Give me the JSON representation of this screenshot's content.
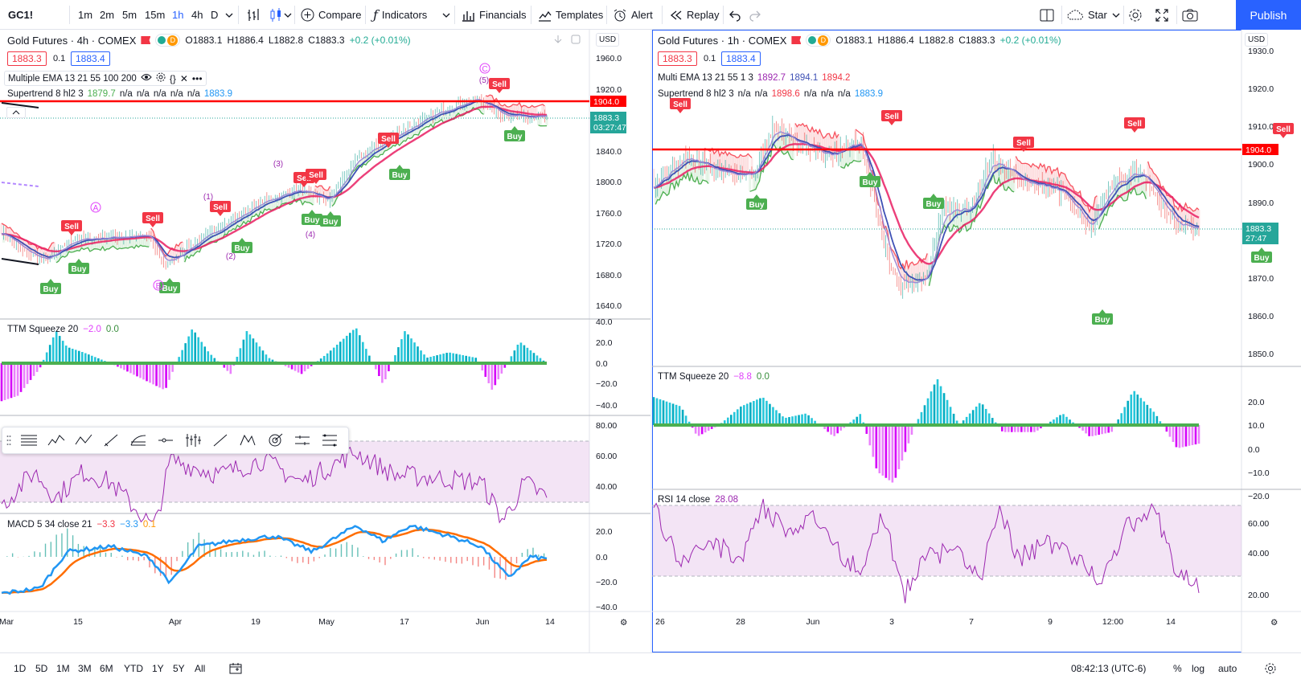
{
  "toolbar": {
    "symbol": "GC1!",
    "intervals": [
      "1m",
      "2m",
      "5m",
      "15m",
      "1h",
      "4h",
      "D"
    ],
    "active_interval": "1h",
    "compare": "Compare",
    "indicators": "Indicators",
    "financials": "Financials",
    "templates": "Templates",
    "alert": "Alert",
    "replay": "Replay",
    "layout_name": "Star",
    "publish": "Publish"
  },
  "left_chart": {
    "title": "Gold Futures · 4h · COMEX",
    "d_badge": "D",
    "ohlc": {
      "o": "O1883.1",
      "h": "H1886.4",
      "l": "L1882.8",
      "c": "C1883.3",
      "chg": "+0.2 (+0.01%)"
    },
    "bid": "1883.3",
    "spread": "0.1",
    "ask": "1883.4",
    "ema_label": "Multiple EMA 13 21 55 100 200",
    "supertrend_label": "Supertrend 8 hl2 3",
    "supertrend_values": [
      "1879.7",
      "n/a",
      "n/a",
      "n/a",
      "n/a",
      "n/a",
      "1883.9"
    ],
    "currency": "USD",
    "price_ticks": [
      "1960.0",
      "1920.0",
      "1880.0",
      "1840.0",
      "1800.0",
      "1760.0",
      "1720.0",
      "1680.0",
      "1640.0"
    ],
    "hline_label": "1904.0",
    "last_price": "1883.3",
    "countdown": "03:27:47",
    "ttm_label": "TTM Squeeze 20",
    "ttm_v1": "−2.0",
    "ttm_v2": "0.0",
    "ttm_ticks": [
      "40.0",
      "20.0",
      "0.0",
      "−20.0",
      "−40.0"
    ],
    "rsi_ticks": [
      "80.00",
      "60.00",
      "40.00"
    ],
    "macd_label": "MACD 5 34 close 21",
    "macd_v1": "−3.3",
    "macd_v2": "−3.3",
    "macd_v3": "0.1",
    "macd_ticks": [
      "20.0",
      "0.0",
      "−20.0",
      "−40.0"
    ],
    "x_ticks": [
      "Mar",
      "15",
      "Apr",
      "19",
      "May",
      "17",
      "Jun",
      "14"
    ],
    "waves": [
      "A",
      "B",
      "C",
      "(1)",
      "(2)",
      "(3)",
      "(4)",
      "(5)"
    ],
    "sell": "Sell",
    "buy": "Buy"
  },
  "right_chart": {
    "title": "Gold Futures · 1h · COMEX",
    "d_badge": "D",
    "ohlc": {
      "o": "O1883.1",
      "h": "H1886.4",
      "l": "L1882.8",
      "c": "C1883.3",
      "chg": "+0.2 (+0.01%)"
    },
    "bid": "1883.3",
    "spread": "0.1",
    "ask": "1883.4",
    "ema_label": "Multi EMA 13 21 55 1 3",
    "ema_values": [
      "1892.7",
      "1894.1",
      "1894.2"
    ],
    "supertrend_label": "Supertrend 8 hl2 3",
    "supertrend_values": [
      "n/a",
      "n/a",
      "1898.6",
      "n/a",
      "n/a",
      "n/a",
      "1883.9"
    ],
    "currency": "USD",
    "price_ticks": [
      "1930.0",
      "1920.0",
      "1910.0",
      "1900.0",
      "1890.0",
      "1880.0",
      "1870.0",
      "1860.0",
      "1850.0"
    ],
    "hline_label": "1904.0",
    "last_price": "1883.3",
    "countdown": "27:47",
    "ttm_label": "TTM Squeeze 20",
    "ttm_v1": "−8.8",
    "ttm_v2": "0.0",
    "ttm_ticks": [
      "20.0",
      "10.0",
      "0.0",
      "−10.0",
      "−20.0"
    ],
    "rsi_label": "RSI 14 close",
    "rsi_value": "28.08",
    "rsi_ticks": [
      "60.00",
      "40.00",
      "20.00"
    ],
    "x_ticks": [
      "26",
      "28",
      "Jun",
      "3",
      "7",
      "9",
      "12:00",
      "14"
    ],
    "sell": "Sell",
    "buy": "Buy"
  },
  "bottombar": {
    "ranges": [
      "1D",
      "5D",
      "1M",
      "3M",
      "6M",
      "YTD",
      "1Y",
      "5Y",
      "All"
    ],
    "time": "08:42:13 (UTC-6)",
    "percent": "%",
    "log": "log",
    "auto": "auto"
  },
  "colors": {
    "accent": "#2962ff",
    "buy": "#4caf50",
    "sell": "#f23645",
    "teal": "#00bcd4",
    "magenta": "#e040fb"
  }
}
